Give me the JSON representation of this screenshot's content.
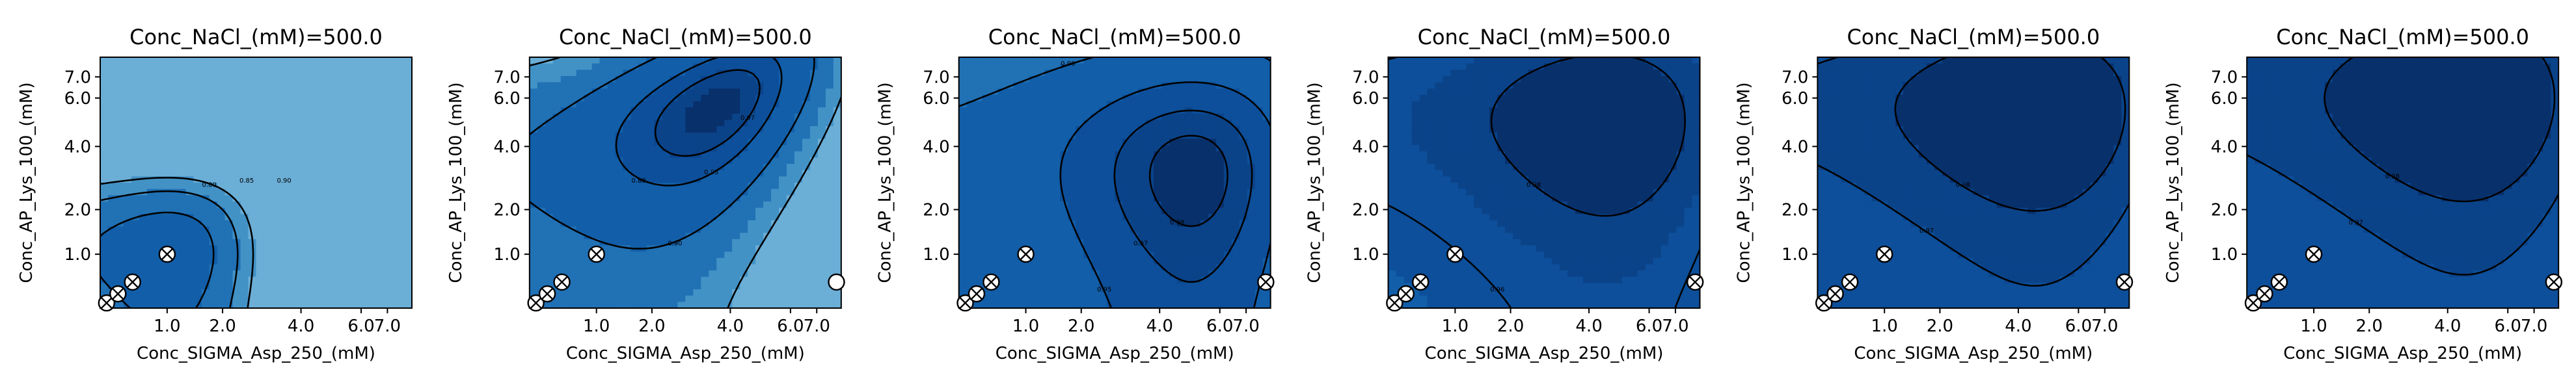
{
  "chart_data": [
    {
      "type": "contour",
      "title": "Conc_NaCl_(mM)=500.0",
      "xlabel": "Conc_SIGMA_Asp_250_(mM)",
      "ylabel": "Conc_AP_Lys_100_(mM)",
      "xlim": [
        0.25,
        8.0
      ],
      "ylim": [
        0.25,
        8.0
      ],
      "x_ticks": [
        "1.0",
        "2.0",
        "4.0",
        "6.0",
        "7.0"
      ],
      "y_ticks": [
        "1.0",
        "2.0",
        "4.0",
        "6.0",
        "7.0"
      ],
      "field": {
        "cx": 1.0,
        "cy": 1.0,
        "base": 0.93,
        "ax": 0.045,
        "ay": 0.035,
        "bxy": 0.0
      },
      "levels": [
        0.8,
        0.85,
        0.9
      ],
      "contour_labels": [
        "0.80",
        "0.85",
        "0.90"
      ],
      "points": [
        {
          "x": 0.3,
          "y": 0.3,
          "marker": "crossed"
        },
        {
          "x": 0.4,
          "y": 0.4,
          "marker": "crossed"
        },
        {
          "x": 0.55,
          "y": 0.55,
          "marker": "crossed"
        },
        {
          "x": 1.0,
          "y": 1.0,
          "marker": "crossed"
        }
      ]
    },
    {
      "type": "contour",
      "title": "Conc_NaCl_(mM)=500.0",
      "xlabel": "Conc_SIGMA_Asp_250_(mM)",
      "ylabel": "Conc_AP_Lys_100_(mM)",
      "xlim": [
        0.25,
        8.0
      ],
      "ylim": [
        0.25,
        8.0
      ],
      "x_ticks": [
        "1.0",
        "2.0",
        "4.0",
        "6.0",
        "7.0"
      ],
      "y_ticks": [
        "1.0",
        "2.0",
        "4.0",
        "6.0",
        "7.0"
      ],
      "field": {
        "cx": 3.5,
        "cy": 5.5,
        "base": 0.985,
        "ax": 0.01,
        "ay": 0.006,
        "bxy": 0.008
      },
      "levels": [
        0.8,
        0.9,
        0.95,
        0.97
      ],
      "contour_labels": [
        "0.80",
        "0.90",
        "0.95",
        "0.97"
      ],
      "points": [
        {
          "x": 0.3,
          "y": 0.3,
          "marker": "crossed"
        },
        {
          "x": 0.4,
          "y": 0.4,
          "marker": "crossed"
        },
        {
          "x": 0.55,
          "y": 0.55,
          "marker": "crossed"
        },
        {
          "x": 1.0,
          "y": 1.0,
          "marker": "crossed"
        },
        {
          "x": 7.8,
          "y": 0.55,
          "marker": "open"
        }
      ]
    },
    {
      "type": "contour",
      "title": "Conc_NaCl_(mM)=500.0",
      "xlabel": "Conc_SIGMA_Asp_250_(mM)",
      "ylabel": "Conc_AP_Lys_100_(mM)",
      "xlim": [
        0.25,
        8.0
      ],
      "ylim": [
        0.25,
        8.0
      ],
      "x_ticks": [
        "1.0",
        "2.0",
        "4.0",
        "6.0",
        "7.0"
      ],
      "y_ticks": [
        "1.0",
        "2.0",
        "4.0",
        "6.0",
        "7.0"
      ],
      "field": {
        "cx": 5.0,
        "cy": 3.0,
        "base": 0.985,
        "ax": 0.003,
        "ay": 0.0025,
        "bxy": 0.0
      },
      "levels": [
        0.9,
        0.95,
        0.97,
        0.98
      ],
      "contour_labels": [
        "0.90",
        "0.95",
        "0.97",
        "0.98"
      ],
      "points": [
        {
          "x": 0.3,
          "y": 0.3,
          "marker": "crossed"
        },
        {
          "x": 0.4,
          "y": 0.4,
          "marker": "crossed"
        },
        {
          "x": 0.55,
          "y": 0.55,
          "marker": "crossed"
        },
        {
          "x": 1.0,
          "y": 1.0,
          "marker": "crossed"
        },
        {
          "x": 7.8,
          "y": 0.55,
          "marker": "crossed"
        }
      ]
    },
    {
      "type": "contour",
      "title": "Conc_NaCl_(mM)=500.0",
      "xlabel": "Conc_SIGMA_Asp_250_(mM)",
      "ylabel": "Conc_AP_Lys_100_(mM)",
      "xlim": [
        0.25,
        8.0
      ],
      "ylim": [
        0.25,
        8.0
      ],
      "x_ticks": [
        "1.0",
        "2.0",
        "4.0",
        "6.0",
        "7.0"
      ],
      "y_ticks": [
        "1.0",
        "2.0",
        "4.0",
        "6.0",
        "7.0"
      ],
      "field": {
        "cx": 4.5,
        "cy": 5.0,
        "base": 0.99,
        "ax": 0.0012,
        "ay": 0.001,
        "bxy": 0.0
      },
      "levels": [
        0.96,
        0.98
      ],
      "contour_labels": [
        "0.96",
        "0.98"
      ],
      "points": [
        {
          "x": 0.3,
          "y": 0.3,
          "marker": "crossed"
        },
        {
          "x": 0.4,
          "y": 0.4,
          "marker": "crossed"
        },
        {
          "x": 0.55,
          "y": 0.55,
          "marker": "crossed"
        },
        {
          "x": 1.0,
          "y": 1.0,
          "marker": "crossed"
        },
        {
          "x": 7.8,
          "y": 0.55,
          "marker": "crossed"
        }
      ]
    },
    {
      "type": "contour",
      "title": "Conc_NaCl_(mM)=500.0",
      "xlabel": "Conc_SIGMA_Asp_250_(mM)",
      "ylabel": "Conc_AP_Lys_100_(mM)",
      "xlim": [
        0.25,
        8.0
      ],
      "ylim": [
        0.25,
        8.0
      ],
      "x_ticks": [
        "1.0",
        "2.0",
        "4.0",
        "6.0",
        "7.0"
      ],
      "y_ticks": [
        "1.0",
        "2.0",
        "4.0",
        "6.0",
        "7.0"
      ],
      "field": {
        "cx": 4.5,
        "cy": 5.5,
        "base": 0.99,
        "ax": 0.0009,
        "ay": 0.0008,
        "bxy": 0.0
      },
      "levels": [
        0.97,
        0.98
      ],
      "contour_labels": [
        "0.97",
        "0.98"
      ],
      "points": [
        {
          "x": 0.3,
          "y": 0.3,
          "marker": "crossed"
        },
        {
          "x": 0.4,
          "y": 0.4,
          "marker": "crossed"
        },
        {
          "x": 0.55,
          "y": 0.55,
          "marker": "crossed"
        },
        {
          "x": 1.0,
          "y": 1.0,
          "marker": "crossed"
        },
        {
          "x": 7.8,
          "y": 0.55,
          "marker": "crossed"
        }
      ]
    },
    {
      "type": "contour",
      "title": "Conc_NaCl_(mM)=500.0",
      "xlabel": "Conc_SIGMA_Asp_250_(mM)",
      "ylabel": "Conc_AP_Lys_100_(mM)",
      "xlim": [
        0.25,
        8.0
      ],
      "ylim": [
        0.25,
        8.0
      ],
      "x_ticks": [
        "1.0",
        "2.0",
        "4.0",
        "6.0",
        "7.0"
      ],
      "y_ticks": [
        "1.0",
        "2.0",
        "4.0",
        "6.0",
        "7.0"
      ],
      "field": {
        "cx": 4.5,
        "cy": 6.0,
        "base": 0.99,
        "ax": 0.0009,
        "ay": 0.0007,
        "bxy": 0.0
      },
      "levels": [
        0.97,
        0.98
      ],
      "contour_labels": [
        "0.97",
        "0.98"
      ],
      "points": [
        {
          "x": 0.3,
          "y": 0.3,
          "marker": "crossed"
        },
        {
          "x": 0.4,
          "y": 0.4,
          "marker": "crossed"
        },
        {
          "x": 0.55,
          "y": 0.55,
          "marker": "crossed"
        },
        {
          "x": 1.0,
          "y": 1.0,
          "marker": "crossed"
        },
        {
          "x": 7.8,
          "y": 0.55,
          "marker": "crossed"
        }
      ]
    }
  ]
}
